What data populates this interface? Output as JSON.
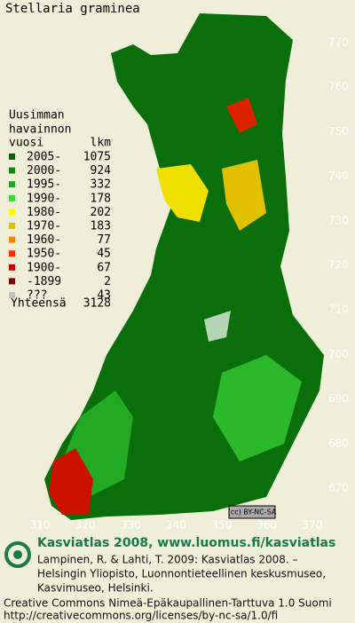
{
  "title": "Stellaria graminea",
  "badge": "(cc) BY-NC-SA",
  "legend": {
    "header": [
      "Uusimman",
      "havainnon",
      "vuosi"
    ],
    "count_header": "lkm",
    "rows": [
      {
        "label": "2005-",
        "count": 1075,
        "color": "#006400"
      },
      {
        "label": "2000-",
        "count": 924,
        "color": "#108a10"
      },
      {
        "label": "1995-",
        "count": 332,
        "color": "#22aa22"
      },
      {
        "label": "1990-",
        "count": 178,
        "color": "#33dd33"
      },
      {
        "label": "1980-",
        "count": 202,
        "color": "#ffff00"
      },
      {
        "label": "1970-",
        "count": 183,
        "color": "#e0c000"
      },
      {
        "label": "1960-",
        "count": 77,
        "color": "#ff8000"
      },
      {
        "label": "1950-",
        "count": 45,
        "color": "#ff3000"
      },
      {
        "label": "1900-",
        "count": 67,
        "color": "#cc0000"
      },
      {
        "label": "-1899",
        "count": 2,
        "color": "#800000"
      },
      {
        "label": "???",
        "count": 43,
        "color": "#c0c0c0"
      }
    ],
    "total_label": "Yhteensä",
    "total": 3128
  },
  "yticks": [
    770,
    760,
    750,
    740,
    730,
    720,
    710,
    700,
    690,
    680,
    670
  ],
  "xticks": [
    310,
    320,
    330,
    340,
    350,
    360,
    370
  ],
  "footer": {
    "heading": "Kasviatlas 2008, www.luomus.fi/kasviatlas",
    "citation": [
      "Lampinen, R. & Lahti, T. 2009: Kasviatlas 2008. –",
      "Helsingin Yliopisto, Luonnontieteellinen keskusmuseo,",
      "Kasvimuseo, Helsinki."
    ],
    "license": [
      "Creative Commons Nimeä-Epäkaupallinen-Tarttuva 1.0 Suomi",
      "http://creativecommons.org/licenses/by-nc-sa/1.0/fi"
    ]
  }
}
